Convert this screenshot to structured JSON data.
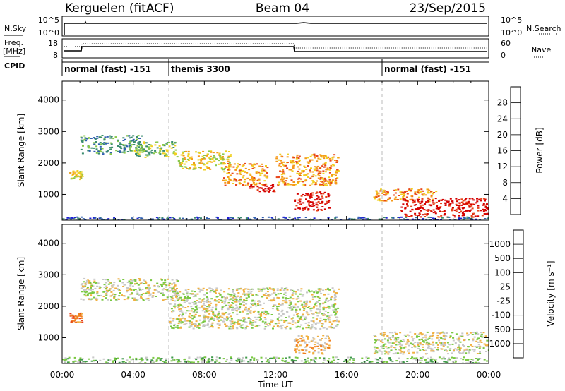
{
  "header": {
    "station": "Kerguelen (fitACF)",
    "beam": "Beam 04",
    "date": "23/Sep/2015"
  },
  "strips": {
    "nsky_label": "N.Sky",
    "nsky_ticks": [
      "10^5",
      "10^0"
    ],
    "nsearch_ticks": [
      "10^5",
      "10^0"
    ],
    "nsearch_label": "N.Search",
    "freq_label_1": "Freq.",
    "freq_label_2": "[MHz]",
    "freq_ticks": [
      "18",
      "8"
    ],
    "nave_ticks": [
      "60",
      "0"
    ],
    "nave_label": "Nave",
    "cpid_label": "CPID",
    "cpid_segments": [
      {
        "label": "normal (fast) -151",
        "start_hour": 0,
        "end_hour": 6
      },
      {
        "label": "themis 3300",
        "start_hour": 6,
        "end_hour": 18
      },
      {
        "label": "normal (fast) -151",
        "start_hour": 18,
        "end_hour": 24
      }
    ]
  },
  "chart_data": [
    {
      "type": "heatmap",
      "title": "",
      "xlabel": "",
      "ylabel": "Slant Range [km]",
      "xlim": [
        0,
        24
      ],
      "ylim": [
        180,
        4600
      ],
      "yticks": [
        1000,
        2000,
        3000,
        4000
      ],
      "colorbar_label": "Power [dB]",
      "colorbar_ticks": [
        "4",
        "8",
        "12",
        "16",
        "20",
        "24",
        "28"
      ],
      "colorbar_colors": [
        "#1f1fd6",
        "#2f5fb0",
        "#3a8c6e",
        "#88c84a",
        "#f0d020",
        "#f59a1a",
        "#e8451a",
        "#d40000"
      ],
      "echo_regions": [
        {
          "t0": 0.4,
          "t1": 1.1,
          "r0": 1500,
          "r1": 1800,
          "level": 4
        },
        {
          "t0": 1.0,
          "t1": 4.5,
          "r0": 2300,
          "r1": 2900,
          "level": 2
        },
        {
          "t0": 4.0,
          "t1": 6.5,
          "r0": 2200,
          "r1": 2700,
          "level": 3
        },
        {
          "t0": 6.5,
          "t1": 9.5,
          "r0": 1800,
          "r1": 2400,
          "level": 4
        },
        {
          "t0": 9.0,
          "t1": 11.5,
          "r0": 1300,
          "r1": 2000,
          "level": 5
        },
        {
          "t0": 10.5,
          "t1": 12.0,
          "r0": 1100,
          "r1": 1350,
          "level": 7
        },
        {
          "t0": 12.0,
          "t1": 15.5,
          "r0": 1300,
          "r1": 2300,
          "level": 5
        },
        {
          "t0": 13.0,
          "t1": 15.0,
          "r0": 500,
          "r1": 1100,
          "level": 7
        },
        {
          "t0": 17.5,
          "t1": 21.0,
          "r0": 800,
          "r1": 1200,
          "level": 5
        },
        {
          "t0": 19.0,
          "t1": 24.0,
          "r0": 300,
          "r1": 900,
          "level": 7
        },
        {
          "t0": 0.0,
          "t1": 24.0,
          "r0": 180,
          "r1": 300,
          "level": 1
        }
      ]
    },
    {
      "type": "heatmap",
      "title": "",
      "xlabel": "Time UT",
      "ylabel": "Slant Range [km]",
      "xlim": [
        0,
        24
      ],
      "ylim": [
        180,
        4600
      ],
      "yticks": [
        1000,
        2000,
        3000,
        4000
      ],
      "xticks": [
        "00:00",
        "04:00",
        "08:00",
        "12:00",
        "16:00",
        "20:00",
        "00:00"
      ],
      "colorbar_label": "Velocity [m s⁻¹]",
      "colorbar_ticks": [
        "1000",
        "500",
        "100",
        "25",
        "-25",
        "-100",
        "-500",
        "-1000"
      ],
      "colorbar_colors": [
        "#1a2fd0",
        "#2f6fa0",
        "#3f9a4a",
        "#78c840",
        "#c8c8c8",
        "#f0b040",
        "#f08020",
        "#e8401a",
        "#d40000"
      ],
      "echo_regions": [
        {
          "t0": 0.4,
          "t1": 1.1,
          "r0": 1500,
          "r1": 1800,
          "level": 6
        },
        {
          "t0": 1.0,
          "t1": 6.5,
          "r0": 2200,
          "r1": 2900,
          "level": 4
        },
        {
          "t0": 6.0,
          "t1": 15.5,
          "r0": 1300,
          "r1": 2600,
          "level": 4
        },
        {
          "t0": 13.0,
          "t1": 15.0,
          "r0": 500,
          "r1": 1100,
          "level": 5
        },
        {
          "t0": 17.5,
          "t1": 24.0,
          "r0": 500,
          "r1": 1200,
          "level": 4
        },
        {
          "t0": 0.0,
          "t1": 24.0,
          "r0": 180,
          "r1": 400,
          "level": 3
        }
      ]
    }
  ]
}
